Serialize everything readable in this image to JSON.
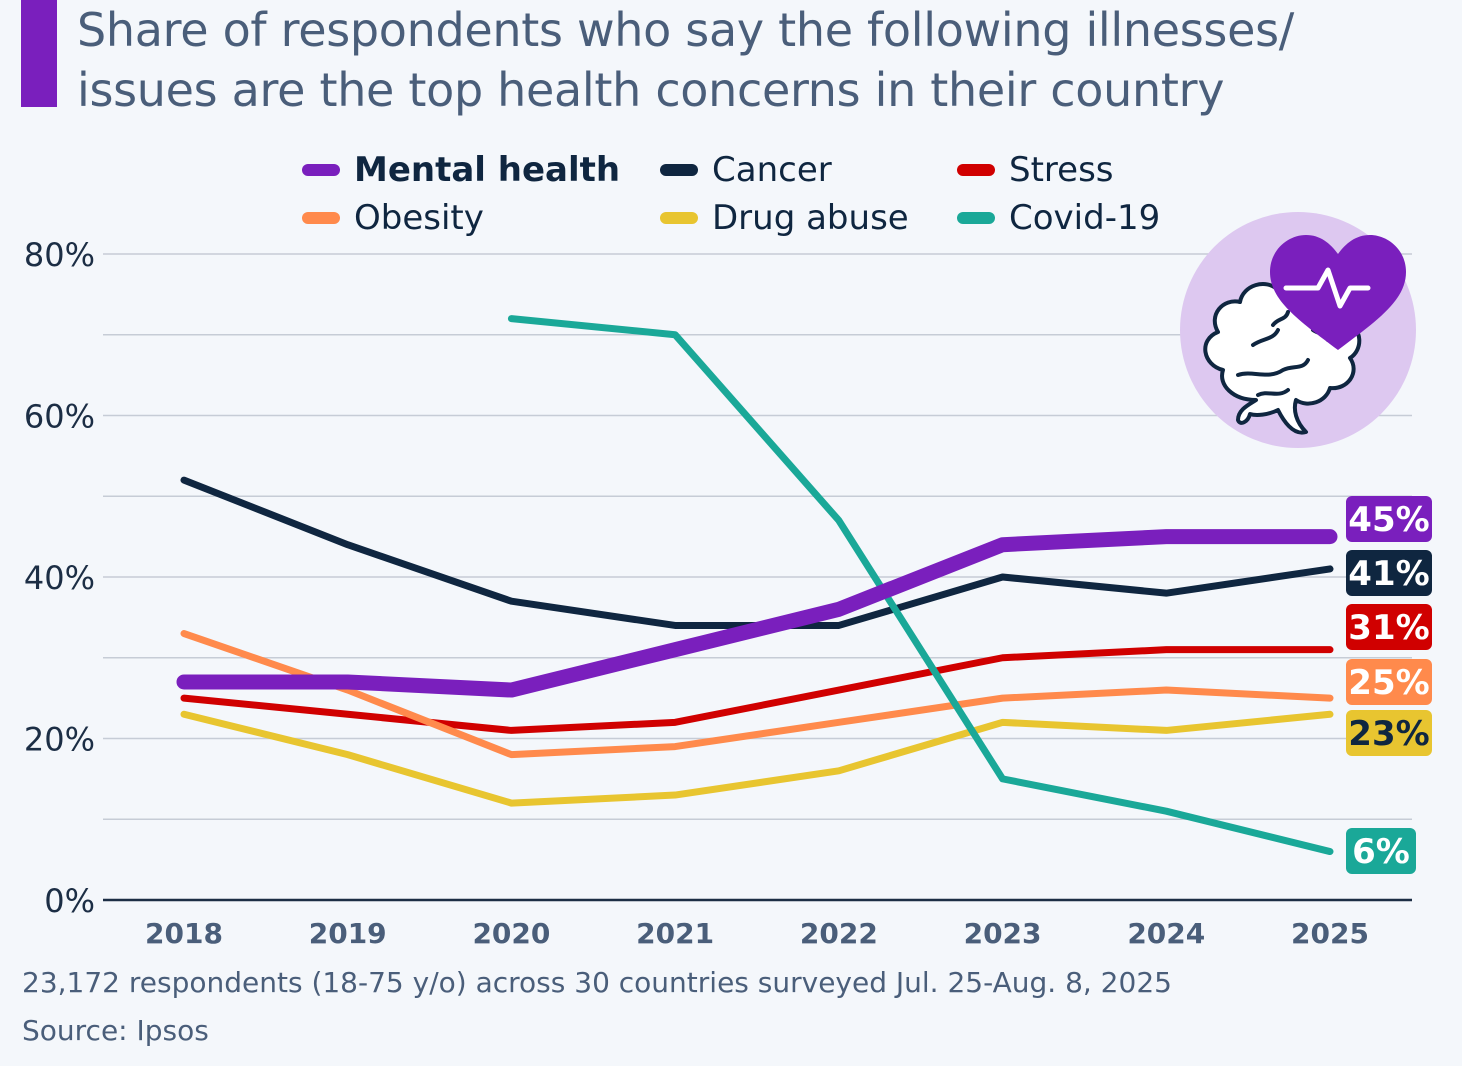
{
  "header": {
    "title_line1": "Share of respondents who say the following illnesses/",
    "title_line2": "issues are the top health concerns in their country",
    "accent_color": "#7a1fbd"
  },
  "illustration": {
    "icon": "brain-heart-pulse-icon",
    "circle_color": "#ddc8f0",
    "heart_color": "#7a1fbd"
  },
  "footer": {
    "note": "23,172 respondents (18-75 y/o) across 30 countries surveyed Jul. 25-Aug. 8, 2025",
    "source": "Source: Ipsos"
  },
  "chart_data": {
    "type": "line",
    "title": "Share of respondents who say the following illnesses/issues are the top health concerns in their country",
    "xlabel": "",
    "ylabel": "",
    "x": [
      "2018",
      "2019",
      "2020",
      "2021",
      "2022",
      "2023",
      "2024",
      "2025"
    ],
    "ylim": [
      0,
      80
    ],
    "yticks": [
      0,
      20,
      40,
      60,
      80
    ],
    "ytick_labels": [
      "0%",
      "20%",
      "40%",
      "60%",
      "80%"
    ],
    "grid": true,
    "legend_position": "top",
    "series": [
      {
        "name": "Mental health",
        "color": "#7a1fbd",
        "emphasis": true,
        "values": [
          27,
          27,
          26,
          31,
          36,
          44,
          45,
          45
        ],
        "end_label": "45%",
        "end_label_text_color": "#ffffff"
      },
      {
        "name": "Cancer",
        "color": "#0f2640",
        "emphasis": false,
        "values": [
          52,
          44,
          37,
          34,
          34,
          40,
          38,
          41
        ],
        "end_label": "41%",
        "end_label_text_color": "#ffffff"
      },
      {
        "name": "Stress",
        "color": "#d00000",
        "emphasis": false,
        "values": [
          25,
          23,
          21,
          22,
          26,
          30,
          31,
          31
        ],
        "end_label": "31%",
        "end_label_text_color": "#ffffff"
      },
      {
        "name": "Obesity",
        "color": "#ff8a4c",
        "emphasis": false,
        "values": [
          33,
          26,
          18,
          19,
          22,
          25,
          26,
          25
        ],
        "end_label": "25%",
        "end_label_text_color": "#ffffff"
      },
      {
        "name": "Drug abuse",
        "color": "#e8c530",
        "emphasis": false,
        "values": [
          23,
          18,
          12,
          13,
          16,
          22,
          21,
          23
        ],
        "end_label": "23%",
        "end_label_text_color": "#0f2640"
      },
      {
        "name": "Covid-19",
        "color": "#1aa898",
        "emphasis": false,
        "values": [
          null,
          null,
          72,
          70,
          47,
          15,
          11,
          6
        ],
        "end_label": "6%",
        "end_label_text_color": "#ffffff"
      }
    ]
  }
}
